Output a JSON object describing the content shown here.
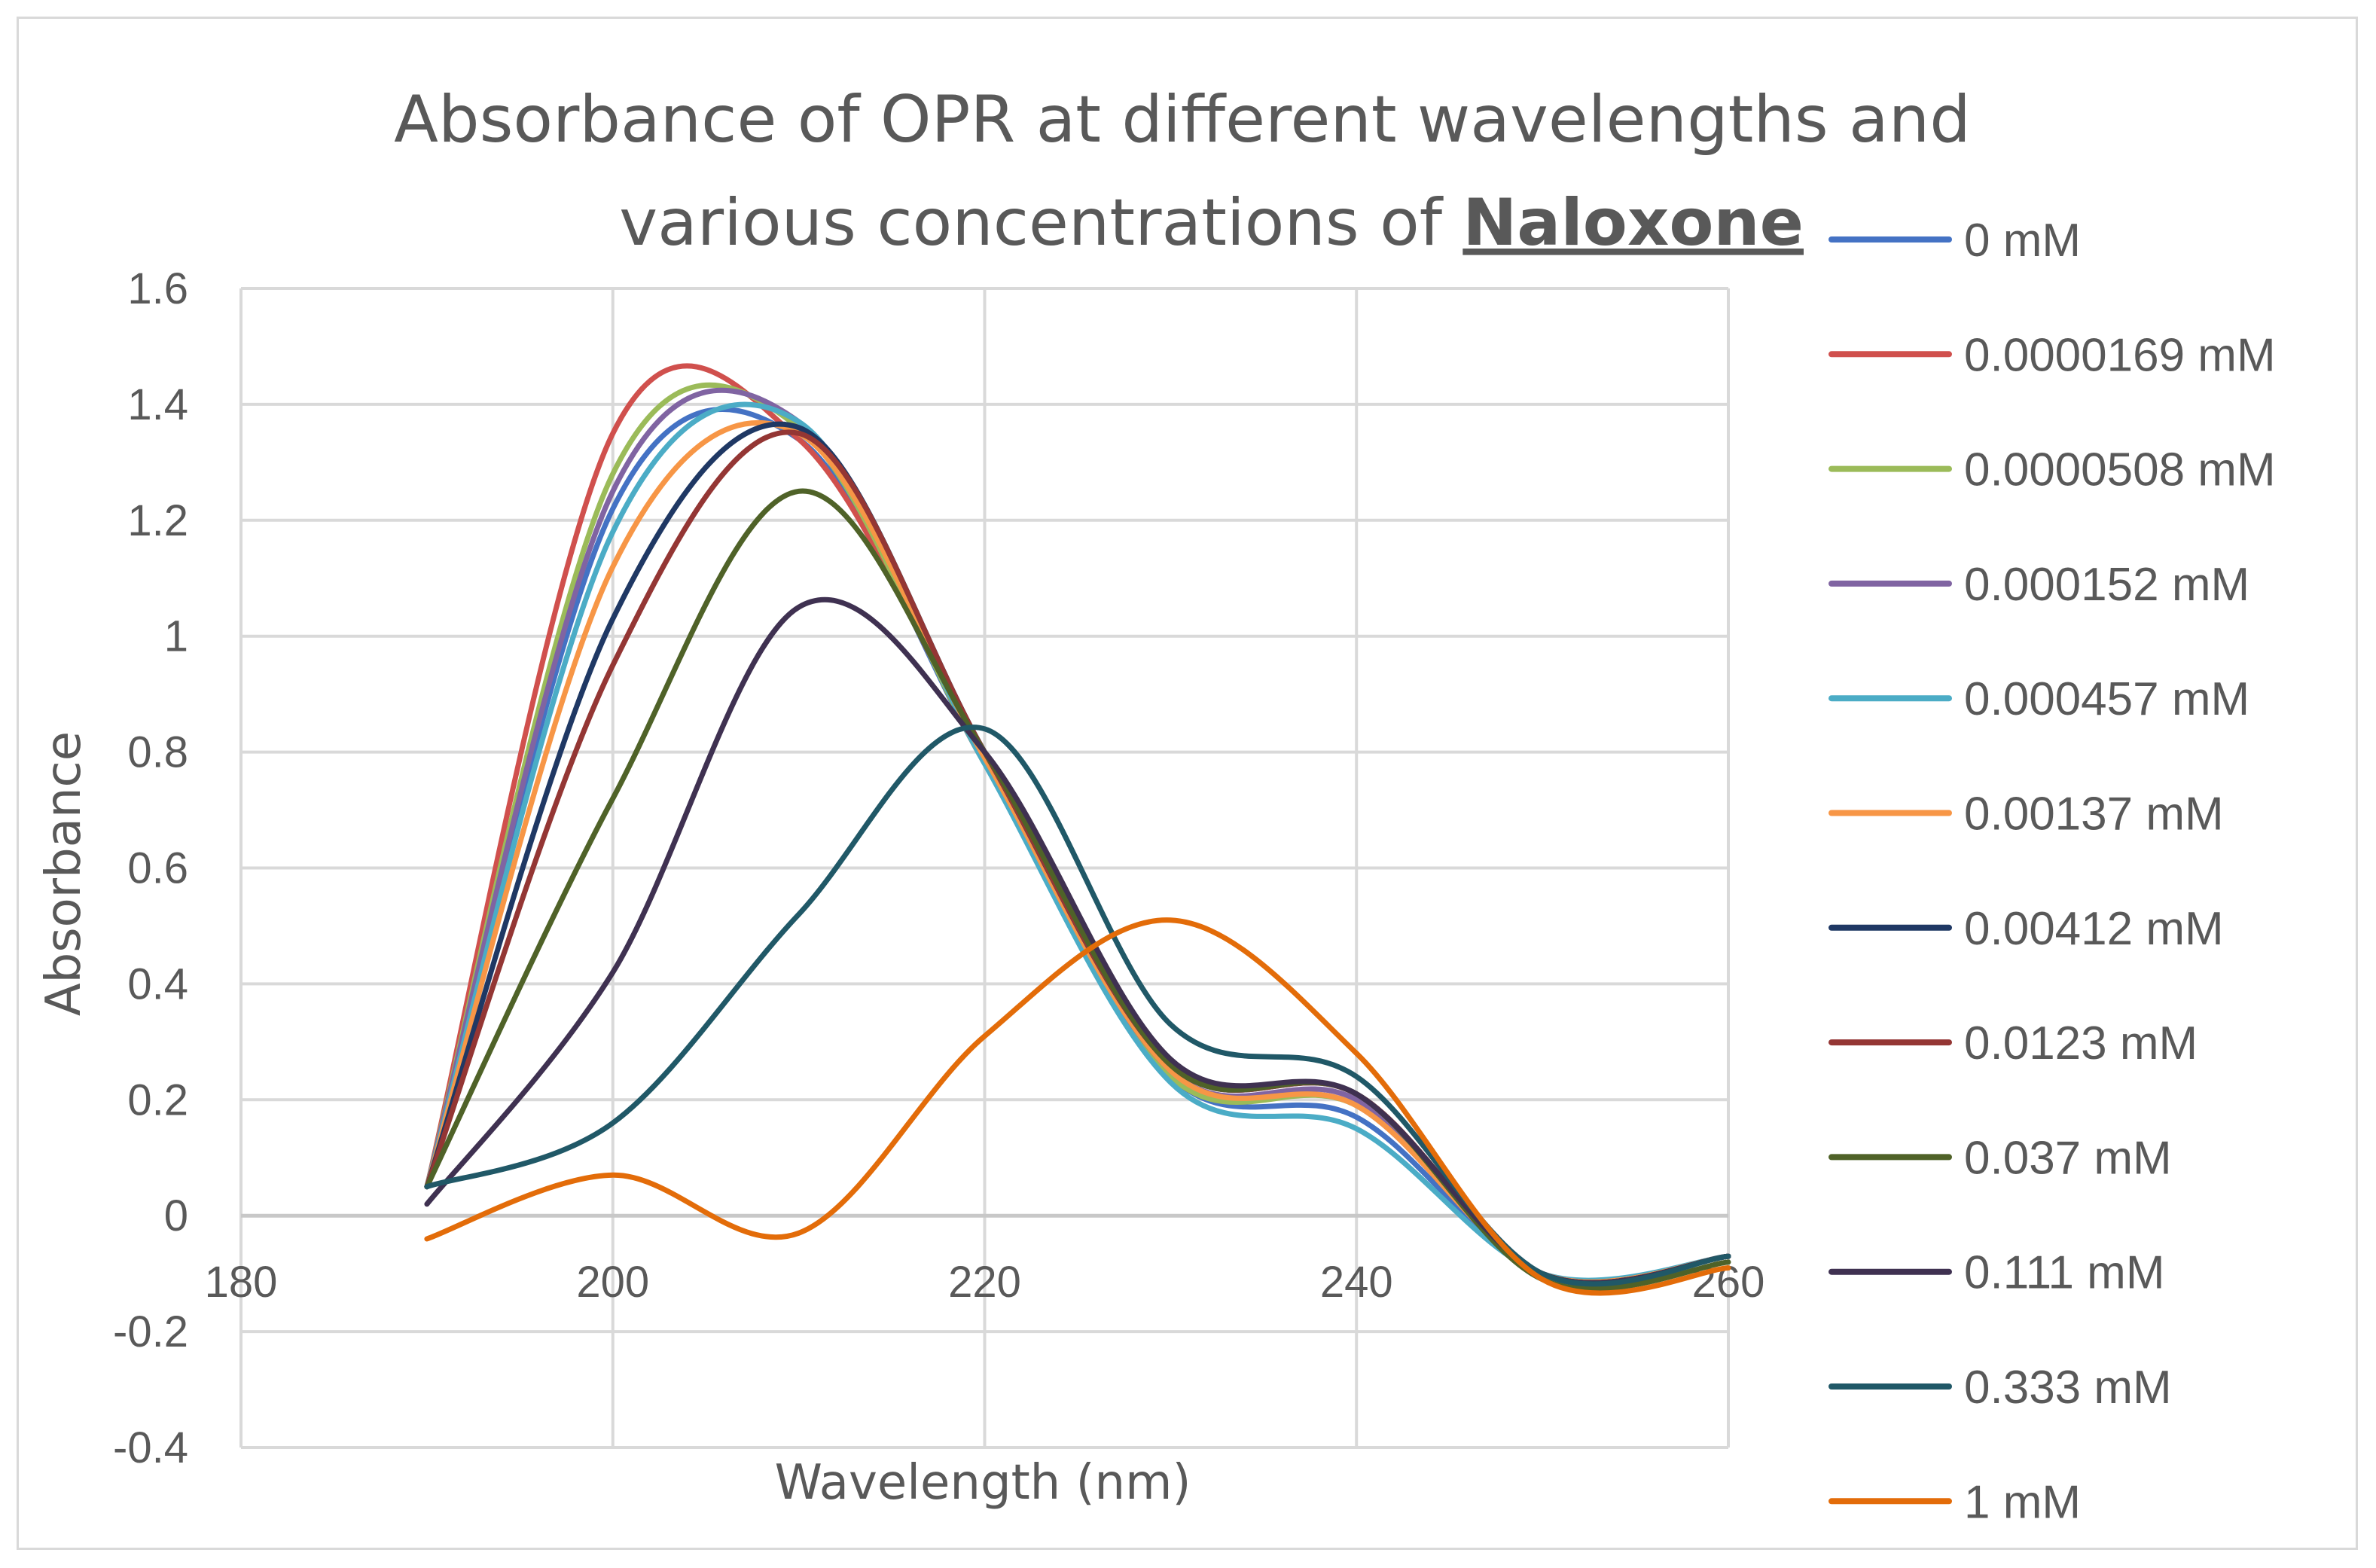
{
  "chart_data": {
    "type": "line",
    "title": "Absorbance of OPR at different wavelengths and various concentrations of Naloxone",
    "title_lines": [
      "Absorbance of OPR at different wavelengths and",
      "various concentrations of "
    ],
    "title_emphasis": "Naloxone",
    "xlabel": "Wavelength (nm)",
    "ylabel": "Absorbance",
    "xlim": [
      180,
      260
    ],
    "ylim": [
      -0.4,
      1.6
    ],
    "x_ticks": [
      180,
      200,
      220,
      240,
      260
    ],
    "y_ticks": [
      -0.4,
      -0.2,
      0,
      0.2,
      0.4,
      0.6,
      0.8,
      1,
      1.2,
      1.4,
      1.6
    ],
    "x_tick_labels": [
      "180",
      "200",
      "220",
      "240",
      "260"
    ],
    "y_tick_labels": [
      "-0.4",
      "-0.2",
      "0",
      "0.2",
      "0.4",
      "0.6",
      "0.8",
      "1",
      "1.2",
      "1.4",
      "1.6"
    ],
    "grid": true,
    "legend_position": "right",
    "x": [
      190,
      200,
      210,
      220,
      230,
      240,
      250,
      260
    ],
    "series": [
      {
        "name": "0 mM",
        "color": "#4472C4",
        "values": [
          0.05,
          1.22,
          1.34,
          0.78,
          0.24,
          0.17,
          -0.1,
          -0.07
        ]
      },
      {
        "name": "0.0000169 mM",
        "color": "#D0504D",
        "values": [
          0.05,
          1.35,
          1.34,
          0.79,
          0.25,
          0.19,
          -0.1,
          -0.07
        ]
      },
      {
        "name": "0.0000508 mM",
        "color": "#9BBB59",
        "values": [
          0.05,
          1.28,
          1.36,
          0.78,
          0.24,
          0.19,
          -0.1,
          -0.07
        ]
      },
      {
        "name": "0.000152 mM",
        "color": "#8064A2",
        "values": [
          0.05,
          1.25,
          1.37,
          0.79,
          0.25,
          0.2,
          -0.1,
          -0.07
        ]
      },
      {
        "name": "0.000457 mM",
        "color": "#4BACC6",
        "values": [
          0.05,
          1.18,
          1.37,
          0.78,
          0.23,
          0.15,
          -0.1,
          -0.07
        ]
      },
      {
        "name": "0.00137 mM",
        "color": "#F79646",
        "values": [
          0.05,
          1.12,
          1.35,
          0.79,
          0.25,
          0.19,
          -0.1,
          -0.07
        ]
      },
      {
        "name": "0.00412 mM",
        "color": "#1F3864",
        "values": [
          0.05,
          1.03,
          1.36,
          0.8,
          0.26,
          0.21,
          -0.1,
          -0.07
        ]
      },
      {
        "name": "0.0123 mM",
        "color": "#943634",
        "values": [
          0.05,
          0.95,
          1.35,
          0.8,
          0.26,
          0.21,
          -0.1,
          -0.07
        ]
      },
      {
        "name": "0.037 mM",
        "color": "#4F6228",
        "values": [
          0.05,
          0.72,
          1.25,
          0.8,
          0.26,
          0.21,
          -0.11,
          -0.08
        ]
      },
      {
        "name": "0.111 mM",
        "color": "#3F3151",
        "values": [
          0.02,
          0.42,
          1.05,
          0.8,
          0.27,
          0.21,
          -0.1,
          -0.07
        ]
      },
      {
        "name": "0.333 mM",
        "color": "#205867",
        "values": [
          0.05,
          0.16,
          0.52,
          0.84,
          0.33,
          0.24,
          -0.1,
          -0.07
        ]
      },
      {
        "name": "1 mM",
        "color": "#E36C09",
        "values": [
          -0.04,
          0.07,
          -0.03,
          0.31,
          0.51,
          0.28,
          -0.11,
          -0.09
        ]
      }
    ]
  }
}
